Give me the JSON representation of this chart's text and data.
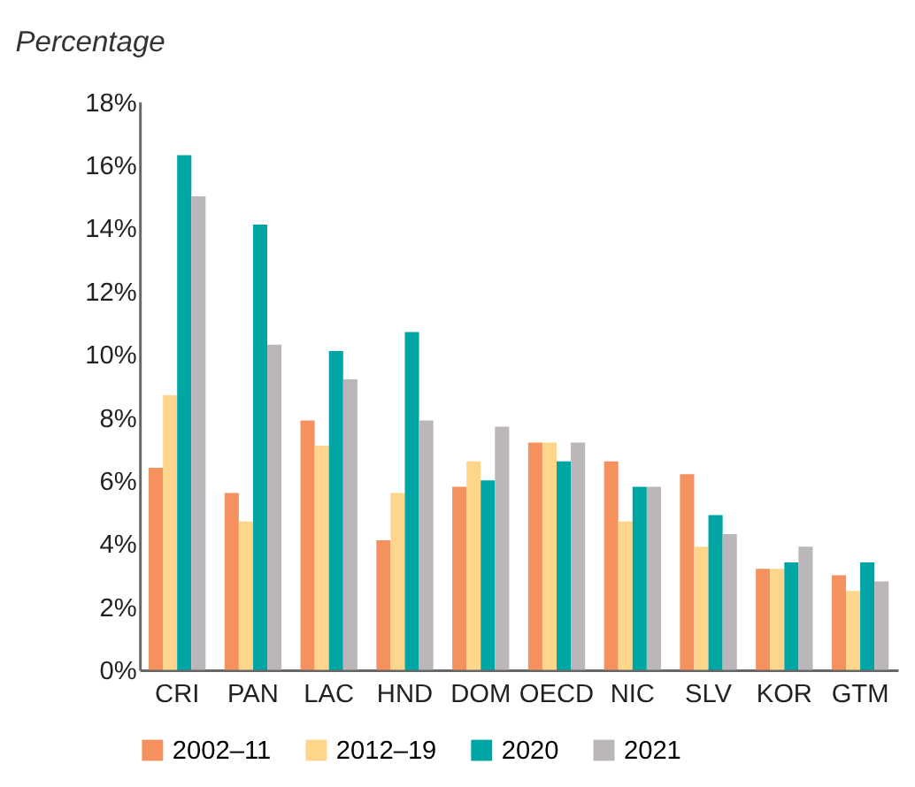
{
  "chart_data": {
    "type": "bar",
    "title": "Percentage",
    "categories": [
      "CRI",
      "PAN",
      "LAC",
      "HND",
      "DOM",
      "OECD",
      "NIC",
      "SLV",
      "KOR",
      "GTM"
    ],
    "series": [
      {
        "name": "2002–11",
        "color": "#f4915e",
        "values": [
          6.4,
          5.6,
          7.9,
          4.1,
          5.8,
          7.2,
          6.6,
          6.2,
          3.2,
          3.0
        ]
      },
      {
        "name": "2012–19",
        "color": "#fdd68c",
        "values": [
          8.7,
          4.7,
          7.1,
          5.6,
          6.6,
          7.2,
          4.7,
          3.9,
          3.2,
          2.5
        ]
      },
      {
        "name": "2020",
        "color": "#00a6a4",
        "values": [
          16.3,
          14.1,
          10.1,
          10.7,
          6.0,
          6.6,
          5.8,
          4.9,
          3.4,
          3.4
        ]
      },
      {
        "name": "2021",
        "color": "#bab6b9",
        "values": [
          15.0,
          10.3,
          9.2,
          7.9,
          7.7,
          7.2,
          5.8,
          4.3,
          3.9,
          2.8
        ]
      }
    ],
    "ylim": [
      0,
      18
    ],
    "yticks": [
      {
        "value": 0,
        "label": "0%"
      },
      {
        "value": 2,
        "label": "2%"
      },
      {
        "value": 4,
        "label": "4%"
      },
      {
        "value": 6,
        "label": "6%"
      },
      {
        "value": 8,
        "label": "8%"
      },
      {
        "value": 10,
        "label": "10%"
      },
      {
        "value": 12,
        "label": "12%"
      },
      {
        "value": 14,
        "label": "14%"
      },
      {
        "value": 16,
        "label": "16%"
      },
      {
        "value": 18,
        "label": "18%"
      }
    ],
    "grid": false,
    "legend": "bottom"
  }
}
